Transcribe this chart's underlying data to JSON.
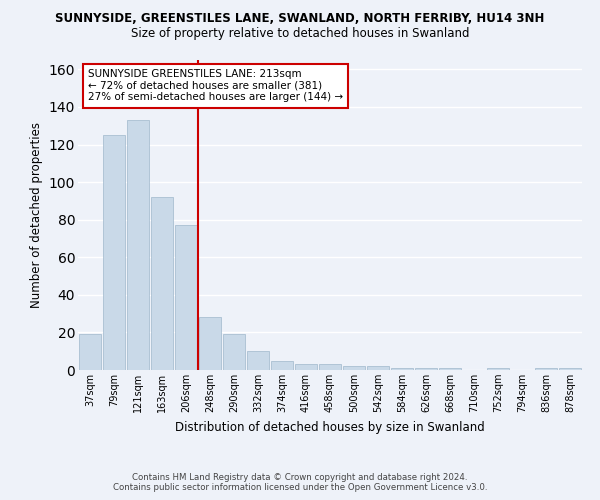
{
  "title1": "SUNNYSIDE, GREENSTILES LANE, SWANLAND, NORTH FERRIBY, HU14 3NH",
  "title2": "Size of property relative to detached houses in Swanland",
  "xlabel": "Distribution of detached houses by size in Swanland",
  "ylabel": "Number of detached properties",
  "categories": [
    "37sqm",
    "79sqm",
    "121sqm",
    "163sqm",
    "206sqm",
    "248sqm",
    "290sqm",
    "332sqm",
    "374sqm",
    "416sqm",
    "458sqm",
    "500sqm",
    "542sqm",
    "584sqm",
    "626sqm",
    "668sqm",
    "710sqm",
    "752sqm",
    "794sqm",
    "836sqm",
    "878sqm"
  ],
  "values": [
    19,
    125,
    133,
    92,
    77,
    28,
    19,
    10,
    5,
    3,
    3,
    2,
    2,
    1,
    1,
    1,
    0,
    1,
    0,
    1,
    1
  ],
  "bar_color": "#c9d9e8",
  "bar_edge_color": "#a0b8cc",
  "annotation_title": "SUNNYSIDE GREENSTILES LANE: 213sqm",
  "annotation_line1": "← 72% of detached houses are smaller (381)",
  "annotation_line2": "27% of semi-detached houses are larger (144) →",
  "red_line_color": "#cc0000",
  "annotation_box_edge": "#cc0000",
  "background_color": "#eef2f9",
  "grid_color": "#ffffff",
  "ylim": [
    0,
    165
  ],
  "yticks": [
    0,
    20,
    40,
    60,
    80,
    100,
    120,
    140,
    160
  ],
  "footer1": "Contains HM Land Registry data © Crown copyright and database right 2024.",
  "footer2": "Contains public sector information licensed under the Open Government Licence v3.0."
}
